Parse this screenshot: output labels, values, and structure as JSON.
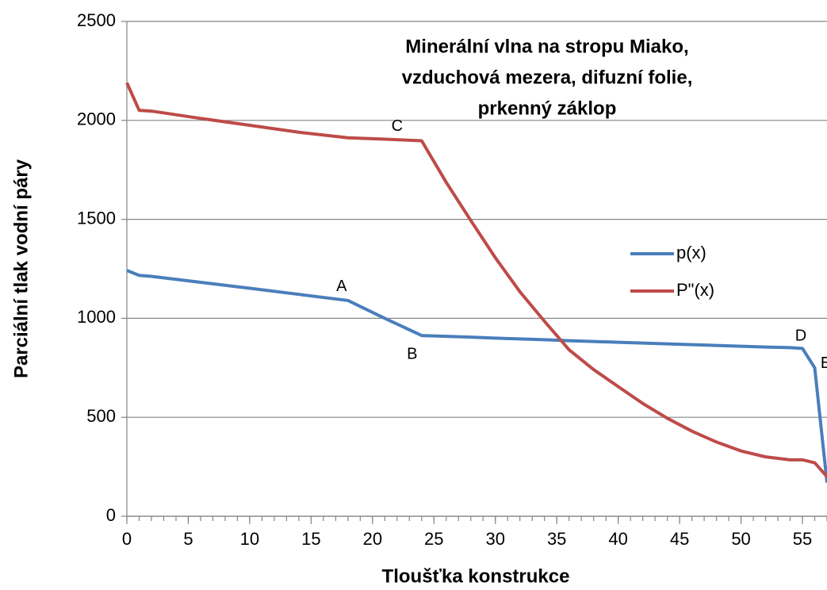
{
  "chart_data": {
    "type": "line",
    "title": [
      "Minerální vlna na stropu Miako,",
      "vzduchová mezera, difuzní folie,",
      "prkenný záklop"
    ],
    "x_label": "Tloušťka konstrukce",
    "y_label": "Parciální tlak vodní páry",
    "x": [
      0,
      1,
      2,
      6,
      10,
      14,
      18,
      21,
      24,
      26,
      28,
      30,
      32,
      34,
      36,
      38,
      40,
      42,
      44,
      46,
      48,
      50,
      52,
      54,
      55,
      56,
      57
    ],
    "series": [
      {
        "name": "p(x)",
        "color": "#4a7ebb",
        "values": [
          1242,
          1217,
          1212,
          1182,
          1152,
          1121,
          1090,
          1000,
          913,
          909,
          905,
          900,
          896,
          892,
          887,
          883,
          879,
          875,
          871,
          867,
          863,
          859,
          855,
          852,
          848,
          750,
          170
        ]
      },
      {
        "name": "P\"(x)",
        "color": "#be4b48",
        "values": [
          2190,
          2051,
          2047,
          2010,
          1975,
          1940,
          1912,
          1905,
          1897,
          1687,
          1494,
          1306,
          1134,
          985,
          841,
          741,
          655,
          570,
          495,
          430,
          375,
          330,
          300,
          285,
          285,
          270,
          200
        ]
      }
    ],
    "annotations": [
      {
        "text": "A",
        "x": 18,
        "y": 1090
      },
      {
        "text": "B",
        "x": 24,
        "y": 913
      },
      {
        "text": "C",
        "x": 22,
        "y": 1905
      },
      {
        "text": "D",
        "x": 55,
        "y": 848
      },
      {
        "text": "E",
        "x": 56,
        "y": 750
      }
    ],
    "xlim": [
      0,
      57
    ],
    "ylim": [
      0,
      2500
    ],
    "xticks": [
      0,
      5,
      10,
      15,
      20,
      25,
      30,
      35,
      40,
      45,
      50,
      55
    ],
    "xminorticks": [
      0,
      1,
      2,
      3,
      4,
      5,
      6,
      7,
      8,
      9,
      10,
      11,
      12,
      13,
      14,
      15,
      16,
      17,
      18,
      19,
      20,
      21,
      22,
      23,
      24,
      25,
      26,
      27,
      28,
      29,
      30,
      31,
      32,
      33,
      34,
      35,
      36,
      37,
      38,
      39,
      40,
      41,
      42,
      43,
      44,
      45,
      46,
      47,
      48,
      49,
      50,
      51,
      52,
      53,
      54,
      55,
      56,
      57
    ],
    "yticks": [
      0,
      500,
      1000,
      1500,
      2000,
      2500
    ],
    "grid": true,
    "legend": "right"
  }
}
